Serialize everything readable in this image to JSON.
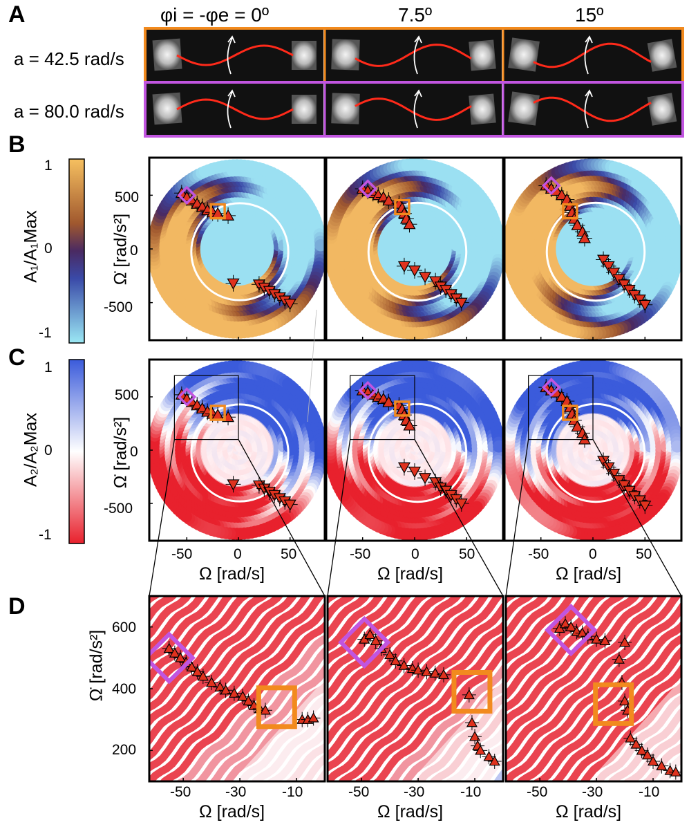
{
  "panels": {
    "A": "A",
    "B": "B",
    "C": "C",
    "D": "D"
  },
  "column_headers": [
    "φi = -φe = 0º",
    "7.5º",
    "15º"
  ],
  "row_labels": [
    "a = 42.5 rad/s",
    "a = 80.0 rad/s"
  ],
  "colorbar_B": {
    "label": "A₁/A₁Max",
    "ticks": [
      "1",
      "0",
      "-1"
    ],
    "colors": [
      "#f6c060",
      "#7a3a2c",
      "#3c3c9c",
      "#9be0f2"
    ]
  },
  "colorbar_C": {
    "label": "A₂/A₂Max",
    "ticks": [
      "1",
      "0",
      "-1"
    ],
    "colors": [
      "#3b5bdb",
      "#ffffff",
      "#e8212d"
    ]
  },
  "axes_BC": {
    "ylabel": "Ω̇ [rad/s²]",
    "xlabel": "Ω [rad/s]",
    "yticks": [
      "500",
      "0",
      "-500"
    ],
    "xticks": [
      "-50",
      "0",
      "50"
    ]
  },
  "axes_D": {
    "ylabel": "Ω̇ [rad/s²]",
    "xlabel": "Ω [rad/s]",
    "yticks": [
      "600",
      "400",
      "200"
    ],
    "xticks": [
      "-50",
      "-30",
      "-10"
    ]
  },
  "colors": {
    "orange": "#f28a1e",
    "purple": "#c155e0",
    "marker": "#e0321e"
  },
  "chart_data": [
    {
      "type": "scatter",
      "title": "B 0º",
      "xlabel": "Ω [rad/s]",
      "ylabel": "Ω̇ [rad/s²]",
      "xlim": [
        -80,
        80
      ],
      "ylim": [
        -800,
        800
      ],
      "series": [
        {
          "name": "up-triangles",
          "x": [
            -55,
            -50,
            -45,
            -40,
            -35,
            -30,
            -25,
            -20,
            -10
          ],
          "y": [
            520,
            480,
            450,
            420,
            390,
            360,
            340,
            330,
            310
          ]
        },
        {
          "name": "down-triangles",
          "x": [
            -5,
            20,
            25,
            30,
            35,
            40,
            45,
            50
          ],
          "y": [
            -320,
            -330,
            -360,
            -390,
            -420,
            -450,
            -480,
            -510
          ]
        }
      ]
    },
    {
      "type": "scatter",
      "title": "B 7.5º",
      "xlabel": "Ω [rad/s]",
      "ylabel": "Ω̇ [rad/s²]",
      "xlim": [
        -80,
        80
      ],
      "ylim": [
        -800,
        800
      ],
      "series": [
        {
          "name": "up-triangles",
          "x": [
            -50,
            -45,
            -40,
            -35,
            -30,
            -25,
            -15,
            -12,
            -10,
            -8,
            -5
          ],
          "y": [
            560,
            540,
            520,
            500,
            480,
            450,
            420,
            380,
            330,
            280,
            230
          ]
        },
        {
          "name": "down-triangles",
          "x": [
            -10,
            0,
            10,
            20,
            25,
            30,
            35,
            40,
            45
          ],
          "y": [
            -160,
            -200,
            -260,
            -300,
            -350,
            -380,
            -420,
            -460,
            -500
          ]
        }
      ]
    },
    {
      "type": "scatter",
      "title": "B 15º",
      "xlabel": "Ω [rad/s]",
      "ylabel": "Ω̇ [rad/s²]",
      "xlim": [
        -80,
        80
      ],
      "ylim": [
        -800,
        800
      ],
      "series": [
        {
          "name": "up-triangles",
          "x": [
            -45,
            -40,
            -35,
            -30,
            -25,
            -22,
            -20,
            -18,
            -15,
            -10,
            -8
          ],
          "y": [
            590,
            560,
            540,
            500,
            460,
            400,
            340,
            280,
            220,
            160,
            100
          ]
        },
        {
          "name": "down-triangles",
          "x": [
            10,
            15,
            20,
            25,
            30,
            35,
            40,
            45,
            50
          ],
          "y": [
            -100,
            -160,
            -220,
            -280,
            -330,
            -380,
            -430,
            -470,
            -520
          ]
        }
      ]
    },
    {
      "type": "scatter",
      "title": "D 0º",
      "xlabel": "Ω [rad/s]",
      "ylabel": "Ω̇ [rad/s²]",
      "xlim": [
        -62,
        0
      ],
      "ylim": [
        100,
        700
      ],
      "series": [
        {
          "name": "up-triangles",
          "x": [
            -55,
            -53,
            -51,
            -49,
            -47,
            -45,
            -43,
            -40,
            -37,
            -35,
            -32,
            -29,
            -27,
            -25,
            -23,
            -21,
            -8,
            -6,
            -4
          ],
          "y": [
            530,
            515,
            500,
            485,
            470,
            455,
            440,
            420,
            405,
            395,
            385,
            375,
            360,
            345,
            335,
            330,
            300,
            300,
            305
          ]
        }
      ]
    },
    {
      "type": "scatter",
      "title": "D 7.5º",
      "xlabel": "Ω [rad/s]",
      "ylabel": "Ω̇ [rad/s²]",
      "xlim": [
        -62,
        0
      ],
      "ylim": [
        100,
        700
      ],
      "series": [
        {
          "name": "up-triangles",
          "x": [
            -49,
            -47,
            -45,
            -43,
            -40,
            -38,
            -35,
            -32,
            -30,
            -27,
            -24,
            -21,
            -12,
            -11,
            -10,
            -9,
            -8,
            -5,
            -3
          ],
          "y": [
            560,
            575,
            555,
            530,
            510,
            490,
            475,
            465,
            460,
            455,
            450,
            445,
            380,
            290,
            245,
            215,
            200,
            180,
            165
          ]
        }
      ]
    },
    {
      "type": "scatter",
      "title": "D 15º",
      "xlabel": "Ω [rad/s]",
      "ylabel": "Ω̇ [rad/s²]",
      "xlim": [
        -62,
        0
      ],
      "ylim": [
        100,
        700
      ],
      "series": [
        {
          "name": "up-triangles",
          "x": [
            -43,
            -41,
            -39,
            -37,
            -35,
            -33,
            -30,
            -27,
            -20,
            -22,
            -21,
            -20,
            -19,
            -18,
            -16,
            -14,
            -12,
            -10,
            -7,
            -4,
            -2
          ],
          "y": [
            595,
            610,
            600,
            585,
            580,
            570,
            560,
            555,
            550,
            495,
            420,
            360,
            330,
            240,
            220,
            200,
            185,
            165,
            150,
            135,
            130
          ]
        }
      ]
    }
  ]
}
